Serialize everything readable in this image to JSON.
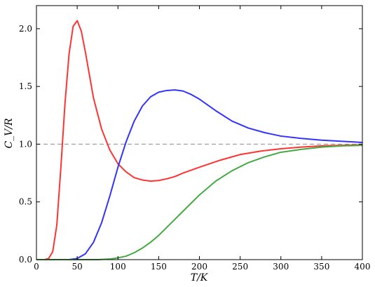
{
  "chart_data": {
    "type": "line",
    "xlabel": "T/K",
    "ylabel": "C_V/R",
    "xlim": [
      0,
      400
    ],
    "ylim": [
      0,
      2.2
    ],
    "xticks": [
      0,
      50,
      100,
      150,
      200,
      250,
      300,
      350,
      400
    ],
    "yticks": [
      0.0,
      0.5,
      1.0,
      1.5,
      2.0
    ],
    "xtick_labels": [
      "0",
      "50",
      "100",
      "150",
      "200",
      "250",
      "300",
      "350",
      "400"
    ],
    "ytick_labels": [
      "0.0",
      "0.5",
      "1.0",
      "1.5",
      "2.0"
    ],
    "grid": false,
    "reference_line": {
      "y": 1.0,
      "style": "dashed",
      "color": "#999999"
    },
    "series": [
      {
        "color": "#ff3333",
        "x": [
          0,
          10,
          15,
          20,
          25,
          30,
          35,
          40,
          45,
          50,
          55,
          60,
          65,
          70,
          80,
          90,
          100,
          110,
          120,
          130,
          140,
          150,
          160,
          170,
          180,
          200,
          225,
          250,
          275,
          300,
          325,
          350,
          375,
          400
        ],
        "y": [
          0,
          0,
          0.01,
          0.07,
          0.3,
          0.8,
          1.35,
          1.78,
          2.02,
          2.07,
          1.98,
          1.8,
          1.6,
          1.4,
          1.13,
          0.95,
          0.83,
          0.76,
          0.71,
          0.69,
          0.68,
          0.685,
          0.7,
          0.72,
          0.75,
          0.8,
          0.86,
          0.91,
          0.94,
          0.96,
          0.975,
          0.985,
          0.99,
          0.995
        ]
      },
      {
        "color": "#3333ff",
        "x": [
          0,
          40,
          50,
          60,
          70,
          80,
          90,
          100,
          110,
          120,
          130,
          140,
          150,
          160,
          170,
          180,
          190,
          200,
          220,
          240,
          260,
          280,
          300,
          325,
          350,
          375,
          400
        ],
        "y": [
          0,
          0,
          0.01,
          0.05,
          0.15,
          0.32,
          0.55,
          0.8,
          1.02,
          1.2,
          1.33,
          1.41,
          1.45,
          1.465,
          1.47,
          1.46,
          1.43,
          1.39,
          1.29,
          1.2,
          1.14,
          1.1,
          1.07,
          1.05,
          1.035,
          1.025,
          1.015
        ]
      },
      {
        "color": "#44aa44",
        "x": [
          0,
          75,
          90,
          100,
          110,
          120,
          130,
          140,
          150,
          160,
          170,
          180,
          190,
          200,
          220,
          240,
          260,
          280,
          300,
          325,
          350,
          375,
          400
        ],
        "y": [
          0,
          0,
          0.005,
          0.015,
          0.03,
          0.06,
          0.1,
          0.15,
          0.21,
          0.28,
          0.35,
          0.42,
          0.49,
          0.56,
          0.68,
          0.77,
          0.84,
          0.89,
          0.93,
          0.955,
          0.975,
          0.985,
          0.99
        ]
      }
    ]
  }
}
